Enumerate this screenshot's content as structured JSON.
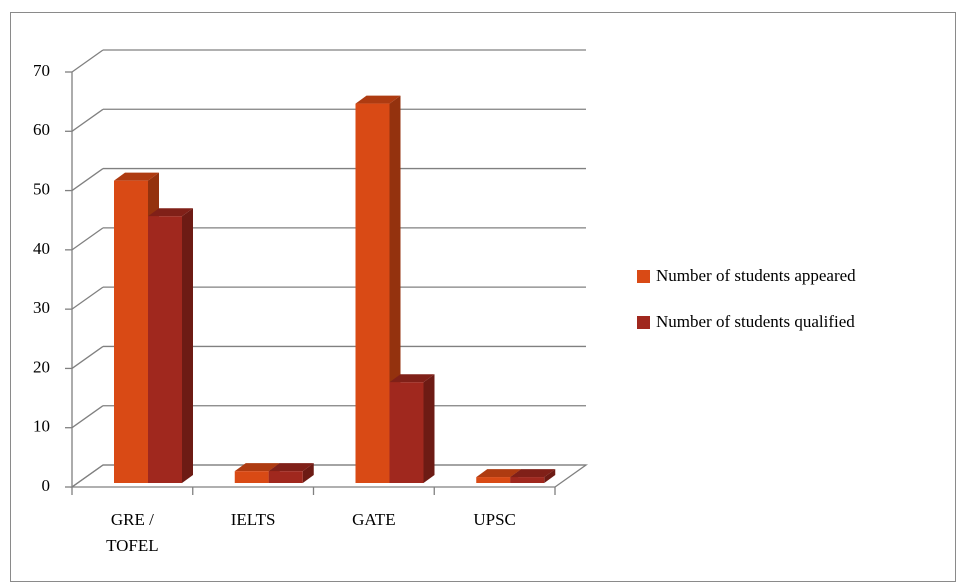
{
  "chart_data": {
    "type": "bar3d",
    "categories": [
      "GRE / TOFEL",
      "IELTS",
      "GATE",
      "UPSC"
    ],
    "series": [
      {
        "name": "Number of students appeared",
        "color": "#d94a15",
        "values": [
          51,
          2,
          64,
          1
        ]
      },
      {
        "name": "Number of students qualified",
        "color": "#a0281e",
        "values": [
          45,
          2,
          17,
          1
        ]
      }
    ],
    "ylim": [
      0,
      70
    ],
    "yticks": [
      0,
      10,
      20,
      30,
      40,
      50,
      60,
      70
    ],
    "grid": true,
    "legend": "right"
  }
}
